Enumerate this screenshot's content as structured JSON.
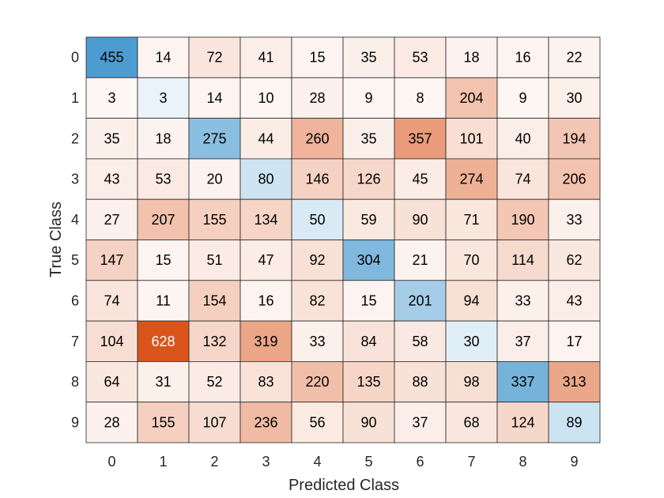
{
  "chart_data": {
    "type": "heatmap",
    "title": "",
    "xlabel": "Predicted Class",
    "ylabel": "True Class",
    "categories_x": [
      "0",
      "1",
      "2",
      "3",
      "4",
      "5",
      "6",
      "7",
      "8",
      "9"
    ],
    "categories_y": [
      "0",
      "1",
      "2",
      "3",
      "4",
      "5",
      "6",
      "7",
      "8",
      "9"
    ],
    "values": [
      [
        455,
        14,
        72,
        41,
        15,
        35,
        53,
        18,
        16,
        22
      ],
      [
        3,
        3,
        14,
        10,
        28,
        9,
        8,
        204,
        9,
        30
      ],
      [
        35,
        18,
        275,
        44,
        260,
        35,
        357,
        101,
        40,
        194
      ],
      [
        43,
        53,
        20,
        80,
        146,
        126,
        45,
        274,
        74,
        206
      ],
      [
        27,
        207,
        155,
        134,
        50,
        59,
        90,
        71,
        190,
        33
      ],
      [
        147,
        15,
        51,
        47,
        92,
        304,
        21,
        70,
        114,
        62
      ],
      [
        74,
        11,
        154,
        16,
        82,
        15,
        201,
        94,
        33,
        43
      ],
      [
        104,
        628,
        132,
        319,
        33,
        84,
        58,
        30,
        37,
        17
      ],
      [
        64,
        31,
        52,
        83,
        220,
        135,
        88,
        98,
        337,
        313
      ],
      [
        28,
        155,
        107,
        236,
        56,
        90,
        37,
        68,
        124,
        89
      ]
    ],
    "diagonal_color": "#0072BD",
    "offdiagonal_color": "#D95319",
    "grid": true,
    "legend": "none"
  }
}
